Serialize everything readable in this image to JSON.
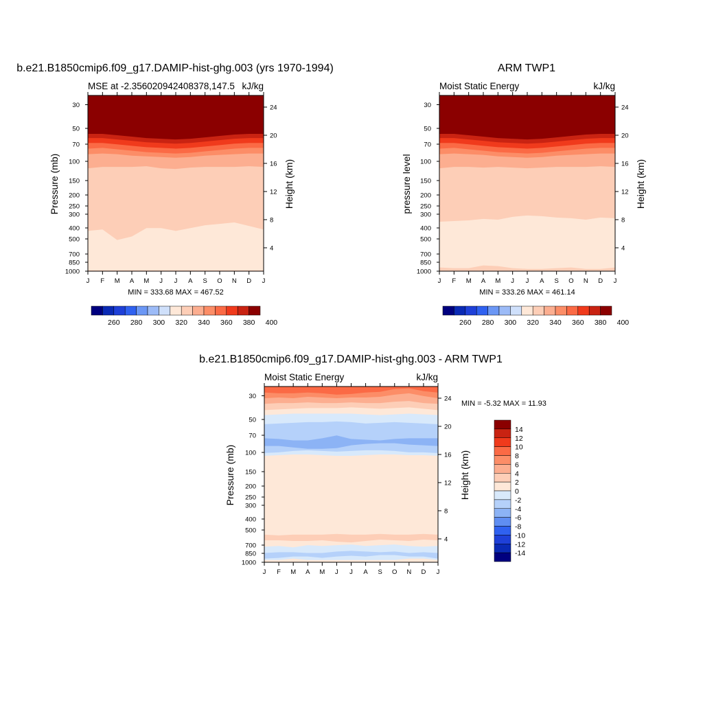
{
  "panels": [
    {
      "title": "b.e21.B1850cmip6.f09_g17.DAMIP-hist-ghg.003 (yrs 1970-1994)",
      "left_label": "MSE at -2.356020942408378,147.5",
      "right_label": "kJ/kg",
      "ylabel": "Pressure (mb)",
      "ylabel_right": "Height (km)",
      "minmax": "MIN = 333.68 MAX = 467.52"
    },
    {
      "title": "ARM TWP1",
      "left_label": "Moist Static Energy",
      "right_label": "kJ/kg",
      "ylabel": "pressure level",
      "ylabel_right": "Height (km)",
      "minmax": "MIN = 333.26 MAX = 461.14"
    },
    {
      "title": "b.e21.B1850cmip6.f09_g17.DAMIP-hist-ghg.003 - ARM TWP1",
      "left_label": "Moist Static Energy",
      "right_label": "kJ/kg",
      "ylabel": "Pressure (mb)",
      "ylabel_right": "Height (km)",
      "minmax": "MIN =  -5.32 MAX =  11.93"
    }
  ],
  "chart_data": [
    {
      "type": "heatmap",
      "title": "b.e21.B1850cmip6.f09_g17.DAMIP-hist-ghg.003 (yrs 1970-1994)",
      "x_ticks": [
        "J",
        "F",
        "M",
        "A",
        "M",
        "J",
        "J",
        "A",
        "S",
        "O",
        "N",
        "D",
        "J"
      ],
      "y_ticks": [
        "30",
        "50",
        "70",
        "100",
        "150",
        "200",
        "250",
        "300",
        "400",
        "500",
        "700",
        "850",
        "1000"
      ],
      "y_right_ticks": [
        "24",
        "20",
        "16",
        "12",
        "8",
        "4"
      ],
      "ylabel": "Pressure (mb)",
      "ylabel_right": "Height (km)",
      "min": 333.68,
      "max": 467.52,
      "colorbar_labels": [
        "260",
        "280",
        "300",
        "320",
        "340",
        "360",
        "380",
        "400"
      ],
      "bands_bottom_to_top": [
        {
          "value": 345,
          "bottom_km": [
            0.5,
            0.5,
            0.5,
            0.5,
            0.5,
            0.5,
            0.5,
            0.5,
            0.5,
            0.5,
            0.5,
            0.5,
            0.5
          ],
          "color": "#fdceb7"
        },
        {
          "value": 335,
          "bottom_km": [
            0.8,
            0.8,
            0.8,
            0.8,
            0.8,
            0.8,
            0.8,
            0.8,
            0.8,
            0.8,
            0.8,
            0.8,
            0.8
          ],
          "color": "#fee8d8"
        },
        {
          "value": 345,
          "bottom_km": [
            6.4,
            6.6,
            5.1,
            5.6,
            6.8,
            6.8,
            6.4,
            6.8,
            7.2,
            7.4,
            7.6,
            7.1,
            6.6
          ],
          "color": "#fdceb7"
        },
        {
          "value": 355,
          "bottom_km": [
            15.3,
            15.5,
            15.5,
            15.5,
            15.6,
            15.3,
            15.2,
            15.4,
            15.5,
            15.5,
            15.5,
            15.6,
            15.5
          ],
          "color": "#fcae90"
        },
        {
          "value": 365,
          "bottom_km": [
            17.3,
            17.4,
            17.3,
            17.1,
            17.0,
            16.9,
            16.8,
            16.9,
            17.1,
            17.2,
            17.3,
            17.4,
            17.4
          ],
          "color": "#fc8d67"
        },
        {
          "value": 375,
          "bottom_km": [
            18.1,
            18.2,
            18.0,
            17.8,
            17.6,
            17.5,
            17.4,
            17.5,
            17.7,
            17.9,
            18.1,
            18.2,
            18.2
          ],
          "color": "#fb6a45"
        },
        {
          "value": 385,
          "bottom_km": [
            18.9,
            18.9,
            18.7,
            18.5,
            18.3,
            18.2,
            18.1,
            18.2,
            18.4,
            18.6,
            18.8,
            18.9,
            18.9
          ],
          "color": "#f03a1c"
        },
        {
          "value": 395,
          "bottom_km": [
            19.6,
            19.6,
            19.4,
            19.2,
            19.0,
            18.9,
            18.8,
            18.9,
            19.1,
            19.3,
            19.5,
            19.6,
            19.6
          ],
          "color": "#c92312"
        },
        {
          "value": 405,
          "bottom_km": [
            20.2,
            20.2,
            20.0,
            19.8,
            19.6,
            19.5,
            19.4,
            19.5,
            19.7,
            19.9,
            20.1,
            20.2,
            20.2
          ],
          "color": "#8b0000"
        }
      ]
    },
    {
      "type": "heatmap",
      "title": "ARM TWP1",
      "x_ticks": [
        "J",
        "F",
        "M",
        "A",
        "M",
        "J",
        "J",
        "A",
        "S",
        "O",
        "N",
        "D",
        "J"
      ],
      "y_ticks": [
        "30",
        "50",
        "70",
        "100",
        "150",
        "200",
        "250",
        "300",
        "400",
        "500",
        "700",
        "850",
        "1000"
      ],
      "y_right_ticks": [
        "24",
        "20",
        "16",
        "12",
        "8",
        "4"
      ],
      "ylabel": "pressure level",
      "ylabel_right": "Height (km)",
      "min": 333.26,
      "max": 461.14,
      "colorbar_labels": [
        "260",
        "280",
        "300",
        "320",
        "340",
        "360",
        "380",
        "400"
      ],
      "bands_bottom_to_top": [
        {
          "value": 345,
          "bottom_km": [
            0.0,
            0.0,
            0.0,
            0.0,
            0.0,
            0.0,
            0.0,
            0.0,
            0.0,
            0.0,
            0.0,
            0.0,
            0.0
          ],
          "color": "#fdceb7"
        },
        {
          "value": 335,
          "bottom_km": [
            1.2,
            1.1,
            1.1,
            1.5,
            1.4,
            1.1,
            1.0,
            1.0,
            1.1,
            1.2,
            1.0,
            1.0,
            1.2
          ],
          "color": "#fee8d8"
        },
        {
          "value": 345,
          "bottom_km": [
            7.7,
            7.8,
            7.9,
            8.1,
            8.0,
            8.4,
            8.6,
            8.5,
            8.3,
            8.2,
            8.0,
            8.3,
            8.2
          ],
          "color": "#fdceb7"
        },
        {
          "value": 355,
          "bottom_km": [
            15.3,
            15.5,
            15.5,
            15.4,
            15.5,
            15.4,
            15.3,
            15.4,
            15.5,
            15.5,
            15.5,
            15.6,
            15.5
          ],
          "color": "#fcae90"
        },
        {
          "value": 365,
          "bottom_km": [
            17.3,
            17.4,
            17.3,
            17.2,
            17.0,
            16.9,
            16.8,
            16.9,
            17.1,
            17.2,
            17.3,
            17.4,
            17.4
          ],
          "color": "#fc8d67"
        },
        {
          "value": 375,
          "bottom_km": [
            18.1,
            18.2,
            18.0,
            17.8,
            17.6,
            17.5,
            17.4,
            17.5,
            17.7,
            17.9,
            18.1,
            18.2,
            18.2
          ],
          "color": "#fb6a45"
        },
        {
          "value": 385,
          "bottom_km": [
            18.9,
            18.9,
            18.7,
            18.5,
            18.3,
            18.2,
            18.1,
            18.2,
            18.4,
            18.6,
            18.8,
            18.9,
            18.9
          ],
          "color": "#f03a1c"
        },
        {
          "value": 395,
          "bottom_km": [
            19.6,
            19.6,
            19.4,
            19.2,
            19.0,
            18.9,
            18.8,
            18.9,
            19.1,
            19.3,
            19.5,
            19.6,
            19.6
          ],
          "color": "#c92312"
        },
        {
          "value": 405,
          "bottom_km": [
            20.2,
            20.2,
            20.0,
            19.8,
            19.6,
            19.5,
            19.4,
            19.5,
            19.7,
            19.9,
            20.1,
            20.2,
            20.2
          ],
          "color": "#8b0000"
        }
      ]
    },
    {
      "type": "heatmap",
      "title": "b.e21.B1850cmip6.f09_g17.DAMIP-hist-ghg.003 - ARM TWP1",
      "x_ticks": [
        "J",
        "F",
        "M",
        "A",
        "M",
        "J",
        "J",
        "A",
        "S",
        "O",
        "N",
        "D",
        "J"
      ],
      "y_ticks": [
        "30",
        "50",
        "70",
        "100",
        "150",
        "200",
        "250",
        "300",
        "400",
        "500",
        "700",
        "850",
        "1000"
      ],
      "y_right_ticks": [
        "24",
        "20",
        "16",
        "12",
        "8",
        "4"
      ],
      "ylabel": "Pressure (mb)",
      "ylabel_right": "Height (km)",
      "min": -5.32,
      "max": 11.93,
      "colorbar_labels": [
        "14",
        "12",
        "10",
        "8",
        "6",
        "4",
        "2",
        "0",
        "-2",
        "-4",
        "-6",
        "-8",
        "-10",
        "-12",
        "-14"
      ],
      "bands_bottom_to_top": [
        {
          "value": 1,
          "bottom_km": [
            0.0,
            0.0,
            0.0,
            0.0,
            0.0,
            0.0,
            0.0,
            0.0,
            0.0,
            0.0,
            0.0,
            0.0,
            0.0
          ],
          "color": "#fee8d8"
        },
        {
          "value": -1,
          "bottom_km": [
            1.0,
            1.0,
            1.2,
            1.0,
            1.0,
            1.0,
            1.0,
            1.0,
            1.0,
            1.0,
            1.2,
            1.2,
            1.0
          ],
          "color": "#d8e9fb"
        },
        {
          "value": -3,
          "bottom_km": [
            1.2,
            1.3,
            1.5,
            1.5,
            1.3,
            1.5,
            1.6,
            1.5,
            1.7,
            1.7,
            1.5,
            1.5,
            1.2
          ],
          "color": "#b5d1fa"
        },
        {
          "value": -1,
          "bottom_km": [
            2.0,
            2.1,
            2.1,
            2.0,
            2.0,
            2.2,
            2.3,
            2.2,
            2.1,
            2.2,
            2.0,
            2.1,
            2.0
          ],
          "color": "#d8e9fb"
        },
        {
          "value": 1,
          "bottom_km": [
            2.9,
            3.0,
            2.8,
            3.1,
            3.0,
            3.1,
            3.2,
            3.0,
            3.1,
            3.2,
            3.0,
            2.9,
            3.0
          ],
          "color": "#fee8d8"
        },
        {
          "value": 3,
          "bottom_km": [
            3.8,
            3.8,
            3.7,
            3.7,
            3.8,
            3.6,
            3.5,
            3.7,
            3.9,
            3.8,
            3.7,
            3.9,
            3.8
          ],
          "color": "#fdceb7"
        },
        {
          "value": 1,
          "bottom_km": [
            4.6,
            4.5,
            4.6,
            4.6,
            4.6,
            4.7,
            4.6,
            4.6,
            4.7,
            4.6,
            4.6,
            4.7,
            4.6
          ],
          "color": "#fee8d8"
        },
        {
          "value": 1,
          "bottom_km": [
            15.5,
            15.6,
            15.5,
            15.5,
            15.6,
            15.5,
            15.4,
            15.5,
            15.6,
            15.6,
            15.5,
            15.6,
            15.5
          ],
          "color": "#fee8d8"
        },
        {
          "value": -1,
          "bottom_km": [
            15.8,
            15.9,
            16.0,
            16.0,
            15.9,
            15.8,
            15.8,
            15.9,
            16.0,
            16.0,
            15.9,
            15.9,
            15.8
          ],
          "color": "#d8e9fb"
        },
        {
          "value": -3,
          "bottom_km": [
            16.2,
            16.3,
            16.5,
            16.6,
            16.5,
            16.4,
            16.5,
            16.6,
            16.6,
            16.5,
            16.3,
            16.3,
            16.2
          ],
          "color": "#b5d1fa"
        },
        {
          "value": -5,
          "bottom_km": [
            17.2,
            17.2,
            17.0,
            16.8,
            16.8,
            16.9,
            17.3,
            17.5,
            17.6,
            17.6,
            17.4,
            17.3,
            17.2
          ],
          "color": "#8cb3f5"
        },
        {
          "value": -3,
          "bottom_km": [
            18.3,
            18.2,
            18.0,
            18.0,
            18.3,
            18.7,
            18.2,
            18.1,
            18.0,
            18.2,
            18.3,
            18.3,
            18.3
          ],
          "color": "#b5d1fa"
        },
        {
          "value": -1,
          "bottom_km": [
            20.3,
            20.4,
            20.5,
            20.6,
            20.6,
            20.7,
            20.6,
            20.4,
            20.5,
            20.6,
            20.5,
            20.4,
            20.3
          ],
          "color": "#d8e9fb"
        },
        {
          "value": 1,
          "bottom_km": [
            21.6,
            21.7,
            21.8,
            21.8,
            21.8,
            21.8,
            21.8,
            21.7,
            21.6,
            21.7,
            21.8,
            21.7,
            21.6
          ],
          "color": "#fee8d8"
        },
        {
          "value": 3,
          "bottom_km": [
            22.3,
            22.4,
            22.5,
            22.6,
            22.6,
            22.6,
            22.7,
            22.6,
            22.5,
            22.6,
            22.7,
            22.5,
            22.3
          ],
          "color": "#fdceb7"
        },
        {
          "value": 5,
          "bottom_km": [
            23.2,
            23.3,
            23.3,
            23.4,
            23.3,
            23.3,
            23.4,
            23.3,
            23.3,
            23.5,
            23.6,
            23.3,
            23.2
          ],
          "color": "#fcae90"
        },
        {
          "value": 7,
          "bottom_km": [
            24.0,
            24.1,
            24.0,
            24.2,
            24.1,
            24.0,
            24.1,
            24.1,
            24.2,
            24.5,
            24.7,
            24.3,
            24.0
          ],
          "color": "#fc8d67"
        },
        {
          "value": 9,
          "bottom_km": [
            24.8,
            24.7,
            24.7,
            24.8,
            24.7,
            24.5,
            24.6,
            24.8,
            24.9,
            25.3,
            25.4,
            25.0,
            24.8
          ],
          "color": "#fb6a45"
        }
      ]
    }
  ],
  "colorbars": {
    "abs_colors": [
      "#00007f",
      "#0a2ab5",
      "#1e40d8",
      "#2f61f0",
      "#6b97f5",
      "#9cbbf7",
      "#cfe0fb",
      "#fee8d8",
      "#fdceb7",
      "#fcae90",
      "#fc8d67",
      "#fb6a45",
      "#f03a1c",
      "#c92312",
      "#8b0000"
    ],
    "diff_colors": [
      "#8b0000",
      "#c92312",
      "#f03a1c",
      "#fb6a45",
      "#fc8d67",
      "#fcae90",
      "#fdceb7",
      "#fee8d8",
      "#d8e9fb",
      "#b5d1fa",
      "#8cb3f5",
      "#5f8ef2",
      "#2f61f0",
      "#1e40d8",
      "#0a2ab5",
      "#00007f"
    ]
  }
}
